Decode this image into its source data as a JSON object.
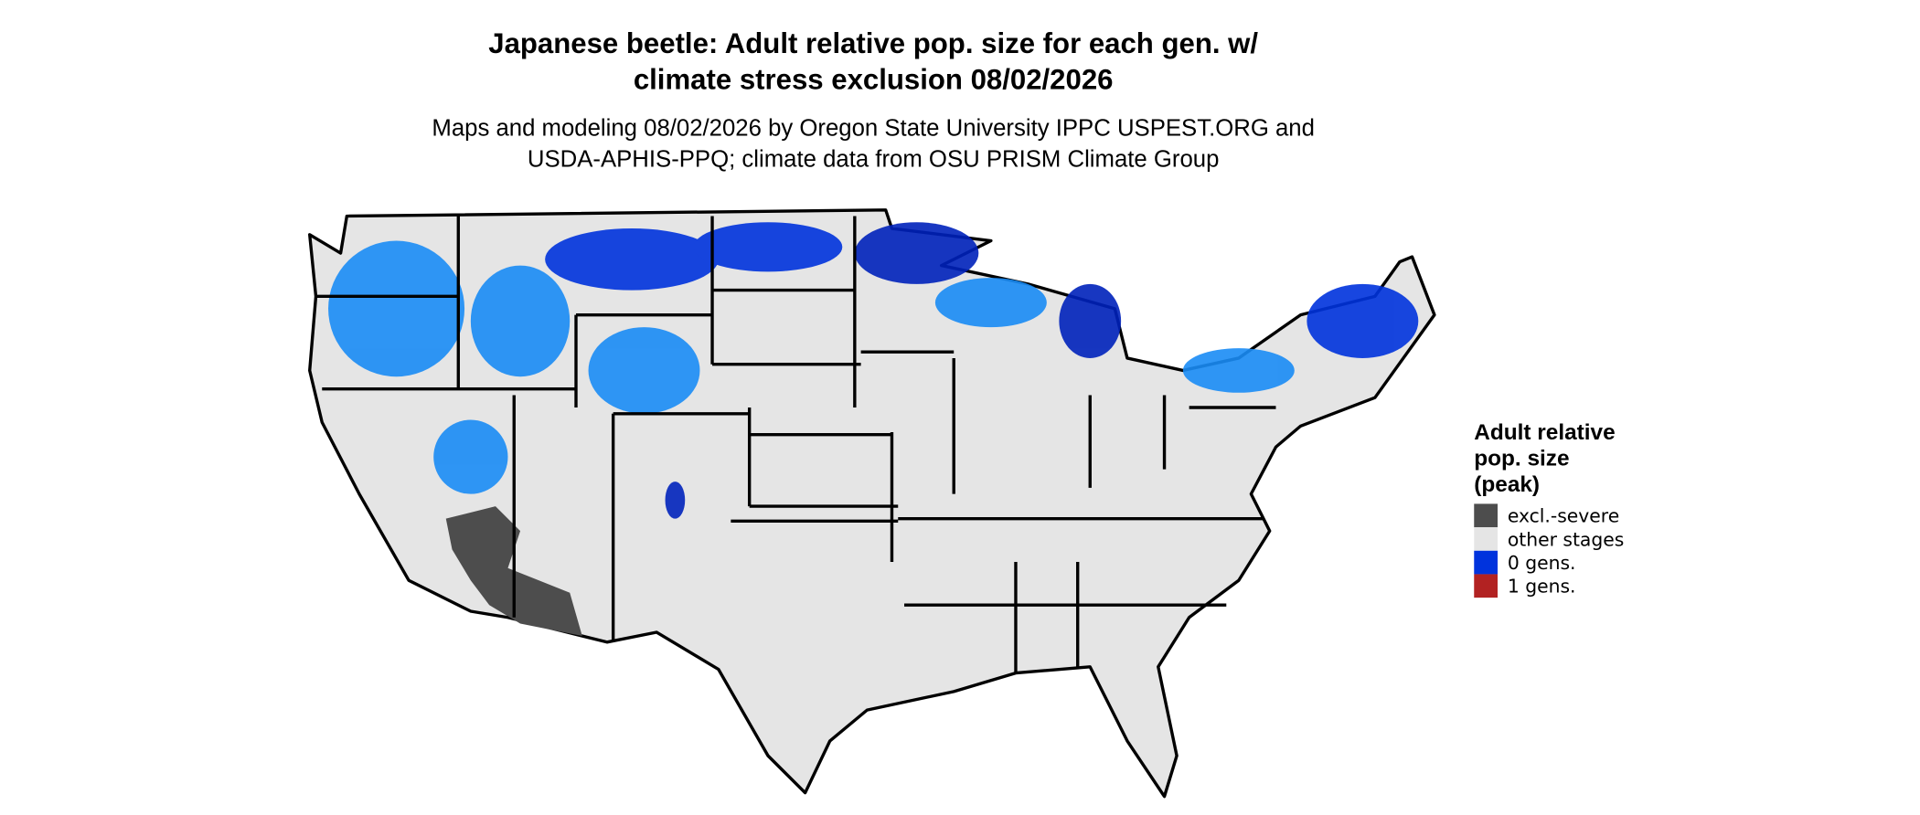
{
  "title": [
    "Japanese beetle: Adult relative pop. size for each gen. w/",
    "climate stress exclusion 08/02/2026"
  ],
  "subtitle": [
    "Maps and modeling 08/02/2026 by Oregon State University IPPC USPEST.ORG and",
    "USDA-APHIS-PPQ; climate data from OSU PRISM Climate Group"
  ],
  "legend": {
    "title": [
      "Adult relative",
      "pop. size",
      "(peak)"
    ],
    "items": [
      {
        "label": "excl.-severe",
        "color": "#4d4d4d"
      },
      {
        "label": "other stages",
        "color": "#e5e5e5"
      },
      {
        "label": "0 gens.",
        "color": "#0033dd"
      },
      {
        "label": "1 gens.",
        "color": "#b22222"
      }
    ]
  }
}
